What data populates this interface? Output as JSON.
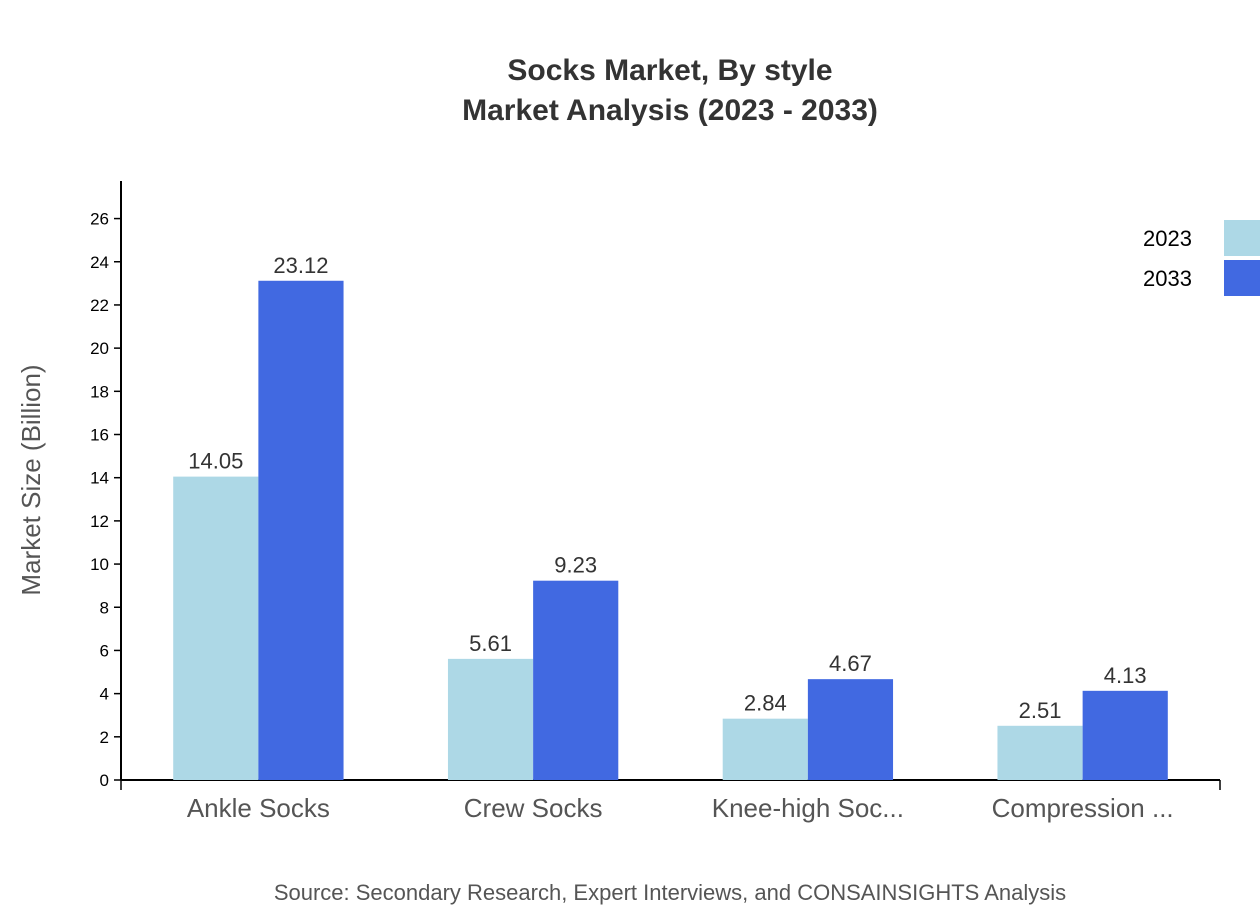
{
  "chart_data": {
    "type": "bar",
    "title": "Socks Market, By style",
    "subtitle": "Market Analysis (2023 - 2033)",
    "xlabel": "",
    "ylabel": "Market Size (Billion)",
    "categories": [
      "Ankle Socks",
      "Crew Socks",
      "Knee-high Soc...",
      "Compression ..."
    ],
    "series": [
      {
        "name": "2023",
        "color": "#ADD8E6",
        "values": [
          14.05,
          5.61,
          2.84,
          2.51
        ]
      },
      {
        "name": "2033",
        "color": "#4169E1",
        "values": [
          23.12,
          9.23,
          4.67,
          4.13
        ]
      }
    ],
    "ylim": [
      0,
      27.74
    ],
    "yticks": [
      0,
      2,
      4,
      6,
      8,
      10,
      12,
      14,
      16,
      18,
      20,
      22,
      24,
      26
    ],
    "grid": false,
    "legend": "top-right",
    "source": "Source: Secondary Research, Expert Interviews, and CONSAINSIGHTS Analysis"
  }
}
